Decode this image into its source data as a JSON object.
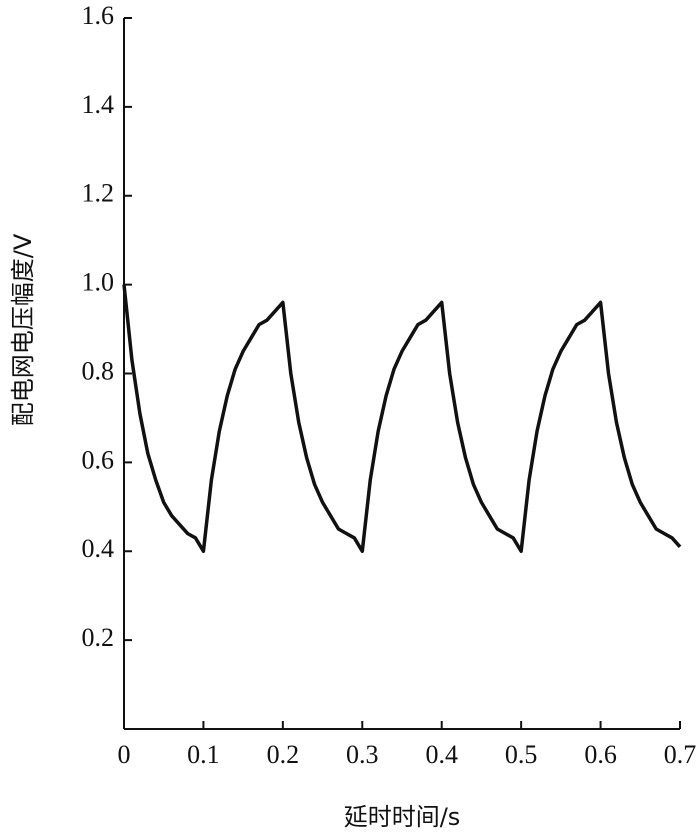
{
  "chart_data": {
    "type": "line",
    "xlabel": "延时时间/s",
    "ylabel": "配电网电压幅度/V",
    "x": [
      0,
      0.01,
      0.02,
      0.03,
      0.04,
      0.05,
      0.06,
      0.07,
      0.08,
      0.09,
      0.1,
      0.11,
      0.12,
      0.13,
      0.14,
      0.15,
      0.16,
      0.17,
      0.18,
      0.19,
      0.2,
      0.21,
      0.22,
      0.23,
      0.24,
      0.25,
      0.26,
      0.27,
      0.28,
      0.29,
      0.3,
      0.31,
      0.32,
      0.33,
      0.34,
      0.35,
      0.36,
      0.37,
      0.38,
      0.39,
      0.4,
      0.41,
      0.42,
      0.43,
      0.44,
      0.45,
      0.46,
      0.47,
      0.48,
      0.49,
      0.5,
      0.51,
      0.52,
      0.53,
      0.54,
      0.55,
      0.56,
      0.57,
      0.58,
      0.59,
      0.6,
      0.61,
      0.62,
      0.63,
      0.64,
      0.65,
      0.66,
      0.67,
      0.68,
      0.69,
      0.7
    ],
    "series": [
      {
        "color": "#111111",
        "values": [
          1.0,
          0.83,
          0.71,
          0.62,
          0.56,
          0.51,
          0.48,
          0.46,
          0.44,
          0.43,
          0.4,
          0.56,
          0.67,
          0.75,
          0.81,
          0.85,
          0.88,
          0.91,
          0.92,
          0.94,
          0.96,
          0.8,
          0.69,
          0.61,
          0.55,
          0.51,
          0.48,
          0.45,
          0.44,
          0.43,
          0.4,
          0.56,
          0.67,
          0.75,
          0.81,
          0.85,
          0.88,
          0.91,
          0.92,
          0.94,
          0.96,
          0.8,
          0.69,
          0.61,
          0.55,
          0.51,
          0.48,
          0.45,
          0.44,
          0.43,
          0.4,
          0.56,
          0.67,
          0.75,
          0.81,
          0.85,
          0.88,
          0.91,
          0.92,
          0.94,
          0.96,
          0.8,
          0.69,
          0.61,
          0.55,
          0.51,
          0.48,
          0.45,
          0.44,
          0.43,
          0.41
        ]
      }
    ],
    "xlim": [
      0,
      0.7
    ],
    "xticks": [
      0,
      0.1,
      0.2,
      0.3,
      0.4,
      0.5,
      0.6,
      0.7
    ],
    "ylim": [
      0,
      1.6
    ],
    "yticks": [
      0.2,
      0.4,
      0.6,
      0.8,
      {
        "value": 1,
        "label": "1.0"
      },
      1.2,
      1.4,
      1.6
    ]
  }
}
